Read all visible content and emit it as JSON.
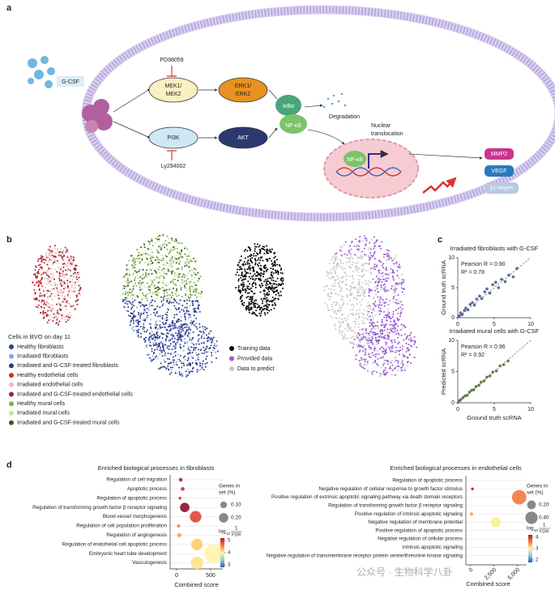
{
  "panel_a": {
    "label": "a",
    "ligand": "G-CSF",
    "inhibitor_1": "PD98059",
    "mek": [
      "MEK1/",
      "MEK2"
    ],
    "erk": [
      "ERK1/",
      "ERK2"
    ],
    "pi3k": "PI3K",
    "akt": "AKT",
    "inhibitor_2": "Ly294002",
    "ikba": "IκBα",
    "nfkb": "NF-κB",
    "degradation": "Degradation",
    "translocation": [
      "Nuclear",
      "translocation"
    ],
    "nfkb_nuclear": "NF-κB",
    "targets": [
      "MMP2",
      "VEGF",
      "β1 integrin"
    ]
  },
  "panel_b": {
    "label": "b",
    "legend_title": "Cells in BVO on day 11",
    "cell_types": [
      {
        "name": "Healthy fibroblasts",
        "color": "#2b3f9e"
      },
      {
        "name": "Irradiated fibroblasts",
        "color": "#8fa3d9"
      },
      {
        "name": "Irradiated and G-CSF-treated fibroblasts",
        "color": "#2e3a7a"
      },
      {
        "name": "Healthy endothelial cells",
        "color": "#d62b2b"
      },
      {
        "name": "Irradiated endothelial cells",
        "color": "#f4b6b6"
      },
      {
        "name": "Irradiated and G-CSF-treated endothelial cells",
        "color": "#8e2a3a"
      },
      {
        "name": "Healthy mural cells",
        "color": "#7fb24a"
      },
      {
        "name": "Irradiated mural cells",
        "color": "#c8dfae"
      },
      {
        "name": "Irradiated and G-CSF-treated mural cells",
        "color": "#3e5a26"
      }
    ],
    "data_legend": [
      {
        "name": "Training data",
        "color": "#000000"
      },
      {
        "name": "Provided data",
        "color": "#9b59d6"
      },
      {
        "name": "Data to predict",
        "color": "#c8c8c8"
      }
    ]
  },
  "panel_c": {
    "label": "c"
  },
  "panel_d": {
    "label": "d"
  },
  "chart_data": [
    {
      "type": "scatter",
      "title": "Irradiated fibroblasts with G-CSF",
      "annotations": [
        "Pearson R = 0.90",
        "R² = 0.78"
      ],
      "ylabel": "Ground truth scRNA",
      "color": "#3f5190",
      "x": [
        0.2,
        0.4,
        0.6,
        0.9,
        1.1,
        1.4,
        1.7,
        2,
        2.3,
        2.6,
        3,
        3.3,
        3.7,
        4,
        4.4,
        4.8,
        5.2,
        5.6,
        6,
        6.5,
        7,
        7.6,
        8.1
      ],
      "y": [
        0.3,
        0.8,
        0.5,
        1.2,
        1.6,
        1.3,
        2.2,
        2.5,
        2.1,
        3.1,
        3.6,
        3.2,
        4.3,
        4.8,
        4.1,
        5.5,
        5.9,
        5,
        6.4,
        6,
        7.1,
        6.8,
        8.2
      ],
      "xlim": [
        0,
        10
      ],
      "ylim": [
        0,
        10
      ],
      "xticks": [
        0,
        5,
        10
      ],
      "yticks": [
        0,
        5,
        10
      ]
    },
    {
      "type": "scatter",
      "title": "Irradiated mural cells with G-CSF",
      "annotations": [
        "Pearson R = 0.96",
        "R² = 0.92"
      ],
      "xlabel": "Ground truth scRNA",
      "ylabel": "Predicted scRNA",
      "color": "#4b6b2c",
      "x": [
        0.2,
        0.4,
        0.7,
        1,
        1.3,
        1.6,
        1.9,
        2.2,
        2.5,
        2.9,
        3.2,
        3.6,
        4,
        4.4,
        4.8,
        5.3,
        5.8,
        6.3,
        6.9
      ],
      "y": [
        0.3,
        0.5,
        0.8,
        1.1,
        1.2,
        1.7,
        2,
        2.1,
        2.6,
        2.8,
        3.3,
        3.5,
        4.1,
        4.3,
        4.9,
        5.1,
        5.9,
        6.1,
        6.7
      ],
      "xlim": [
        0,
        10
      ],
      "ylim": [
        0,
        10
      ],
      "xticks": [
        0,
        5,
        10
      ],
      "yticks": [
        0,
        5,
        10
      ]
    },
    {
      "type": "dot",
      "title": "Enriched biological processes in fibroblasts",
      "xlabel": "Combined score",
      "categories": [
        "Regulation of cell migration",
        "Apoptotic process",
        "Regulation of apoptotic process",
        "Regulation of transforming growth factor β receptor signaling",
        "Blood vessel morphogenesis",
        "Regulation of cell population proliferation",
        "Regulation of angiogenesis",
        "Regulation of endothelial cell apoptotic process",
        "Embryonic heart tube development",
        "Vasculogenesis"
      ],
      "values": [
        60,
        90,
        50,
        120,
        280,
        30,
        40,
        300,
        550,
        300
      ],
      "sizes": [
        0.03,
        0.03,
        0.02,
        0.2,
        0.3,
        0.02,
        0.04,
        0.3,
        0.8,
        0.35
      ],
      "colors": [
        "#b5172a",
        "#c2253a",
        "#d23a3a",
        "#8a0f2a",
        "#e0463a",
        "#f07a3e",
        "#f6a548",
        "#fbcd6a",
        "#fff4a8",
        "#fbe38a"
      ],
      "xlim": [
        -95,
        680
      ],
      "xticks": [
        0,
        500
      ],
      "size_legend_title": [
        "Genes in",
        "set (%)"
      ],
      "size_legend": [
        {
          "value": 0.1,
          "label": "0.10"
        },
        {
          "value": 0.2,
          "label": "0.20"
        }
      ],
      "colorbar_label": [
        "log",
        "10",
        "1",
        "FDR"
      ],
      "colorbar_ticks": [
        5,
        4,
        3
      ],
      "colorbar_colors": [
        "#b5172a",
        "#f07a3e",
        "#fff4a8",
        "#8ecde0",
        "#2c5aa8"
      ]
    },
    {
      "type": "dot",
      "title": "Enriched biological processes in endothelial cells",
      "xlabel": "Combined score",
      "categories": [
        "Regulation of apoptotic process",
        "Negative regulation of cellular response to growth factor stimulus",
        "Positive regulation of extrinsic apoptotic signaling pathway via death domain receptors",
        "Regulation of transforming growth factor β receptor signaling",
        "Positive regulation of intrinsic apoptotic signaling",
        "Negative regulation of membrane potential",
        "Positive regulation of apoptotic process",
        "Negative regulation of cellular process",
        "Intrinsic apoptotic signaling",
        "Negative regulation of transmembrane receptor protein serine/threonine kinase signaling"
      ],
      "values": [
        null,
        200,
        5200,
        null,
        100,
        2700,
        null,
        null,
        null,
        null
      ],
      "sizes": [
        null,
        0.02,
        0.55,
        null,
        0.03,
        0.25,
        null,
        null,
        null,
        null
      ],
      "colors": [
        null,
        "#b5172a",
        "#f07a3e",
        null,
        "#f6a548",
        "#fbf08a",
        null,
        null,
        null,
        null
      ],
      "xlim": [
        -500,
        6000
      ],
      "xticks": [
        0,
        {
          "value": 2500,
          "label": "2,500"
        },
        {
          "value": 5000,
          "label": "5,000"
        }
      ],
      "size_legend_title": [
        "Genes in",
        "set (%)"
      ],
      "size_legend": [
        {
          "value": 0.2,
          "label": "0.20"
        },
        {
          "value": 0.4,
          "label": "0.40"
        }
      ],
      "colorbar_label": [
        "log",
        "10",
        "1",
        "FDR"
      ],
      "colorbar_ticks": [
        4,
        3,
        2
      ],
      "colorbar_colors": [
        "#b5172a",
        "#f07a3e",
        "#fff4a8",
        "#8ecde0",
        "#2c5aa8"
      ]
    }
  ],
  "watermark": "公众号 · 生物科学八卦"
}
